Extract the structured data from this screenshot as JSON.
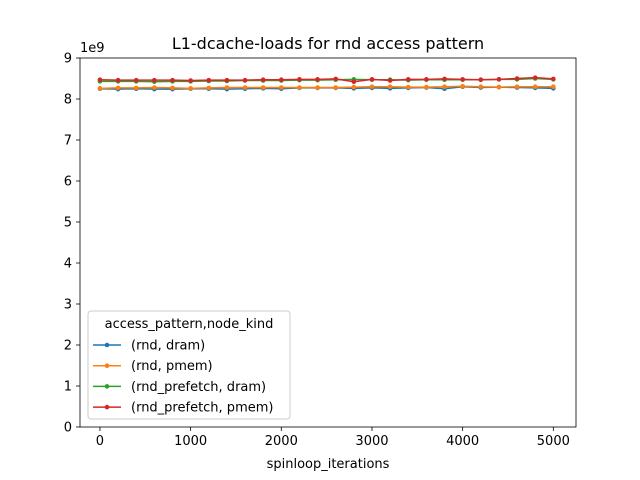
{
  "chart_data": {
    "type": "line",
    "title": "L1-dcache-loads for rnd access pattern",
    "xlabel": "spinloop_iterations",
    "ylabel": "",
    "y_offset_label": "1e9",
    "xlim": [
      -220,
      5250
    ],
    "ylim": [
      0,
      9
    ],
    "x_ticks": [
      0,
      1000,
      2000,
      3000,
      4000,
      5000
    ],
    "x_tick_labels": [
      "0",
      "1000",
      "2000",
      "3000",
      "4000",
      "5000"
    ],
    "y_ticks": [
      0,
      1,
      2,
      3,
      4,
      5,
      6,
      7,
      8,
      9
    ],
    "y_tick_labels": [
      "0",
      "1",
      "2",
      "3",
      "4",
      "5",
      "6",
      "7",
      "8",
      "9"
    ],
    "grid": false,
    "legend_title": "access_pattern,node_kind",
    "legend_position": "lower-left",
    "x": [
      0,
      200,
      400,
      600,
      800,
      1000,
      1200,
      1400,
      1600,
      1800,
      2000,
      2200,
      2400,
      2600,
      2800,
      3000,
      3200,
      3400,
      3600,
      3800,
      4000,
      4200,
      4400,
      4600,
      4800,
      5000
    ],
    "series": [
      {
        "name": "(rnd, dram)",
        "color": "#1f77b4",
        "values": [
          8.25,
          8.24,
          8.25,
          8.24,
          8.24,
          8.25,
          8.25,
          8.24,
          8.25,
          8.26,
          8.25,
          8.27,
          8.27,
          8.27,
          8.26,
          8.27,
          8.26,
          8.27,
          8.28,
          8.25,
          8.3,
          8.28,
          8.29,
          8.28,
          8.27,
          8.26
        ]
      },
      {
        "name": "(rnd, pmem)",
        "color": "#ff7f0e",
        "values": [
          8.26,
          8.27,
          8.27,
          8.28,
          8.27,
          8.26,
          8.27,
          8.28,
          8.28,
          8.28,
          8.28,
          8.28,
          8.28,
          8.28,
          8.29,
          8.3,
          8.3,
          8.29,
          8.29,
          8.3,
          8.31,
          8.3,
          8.29,
          8.3,
          8.3,
          8.3
        ]
      },
      {
        "name": "(rnd_prefetch, dram)",
        "color": "#2ca02c",
        "values": [
          8.43,
          8.43,
          8.43,
          8.42,
          8.43,
          8.43,
          8.44,
          8.44,
          8.45,
          8.45,
          8.45,
          8.46,
          8.46,
          8.47,
          8.48,
          8.47,
          8.47,
          8.46,
          8.47,
          8.47,
          8.47,
          8.47,
          8.48,
          8.48,
          8.5,
          8.48
        ]
      },
      {
        "name": "(rnd_prefetch, pmem)",
        "color": "#d62728",
        "values": [
          8.47,
          8.46,
          8.46,
          8.46,
          8.46,
          8.45,
          8.46,
          8.46,
          8.46,
          8.47,
          8.47,
          8.48,
          8.48,
          8.49,
          8.42,
          8.48,
          8.45,
          8.48,
          8.48,
          8.49,
          8.48,
          8.47,
          8.48,
          8.5,
          8.52,
          8.49
        ]
      }
    ]
  }
}
